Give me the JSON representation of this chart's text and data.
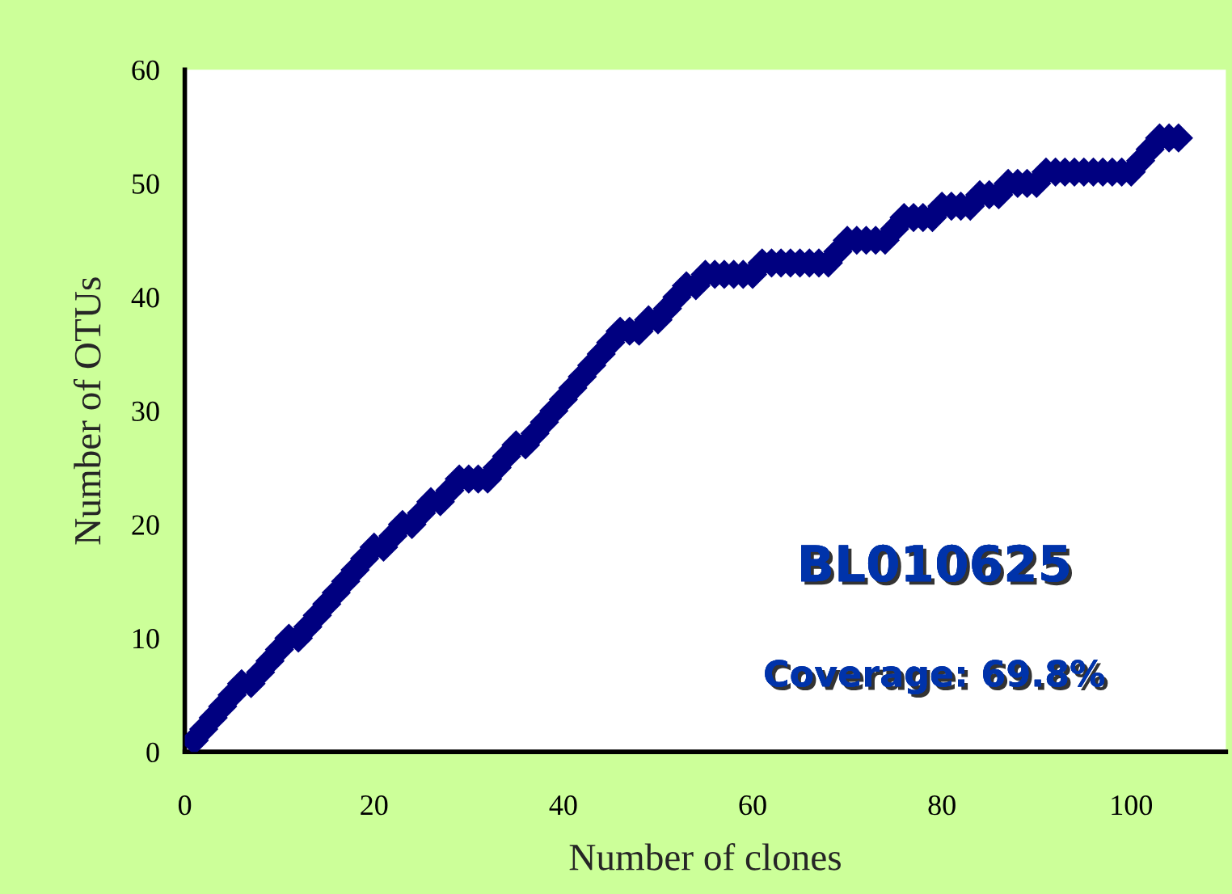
{
  "chart_data": {
    "type": "scatter",
    "xlabel": "Number of clones",
    "ylabel": "Number of OTUs",
    "annotations": [
      "BL010625",
      "Coverage: 69.8%"
    ],
    "marker": "diamond",
    "grid": false,
    "legend": false,
    "xlim": [
      0,
      110
    ],
    "xticks": [
      0,
      20,
      40,
      60,
      80,
      100
    ],
    "ylim": [
      0,
      60
    ],
    "yticks": [
      0,
      10,
      20,
      30,
      40,
      50,
      60
    ],
    "series": [
      {
        "color": "#000080",
        "x": [
          1,
          2,
          3,
          4,
          5,
          6,
          7,
          8,
          9,
          10,
          11,
          12,
          13,
          14,
          15,
          16,
          17,
          18,
          19,
          20,
          21,
          22,
          23,
          24,
          25,
          26,
          27,
          28,
          29,
          30,
          31,
          32,
          33,
          34,
          35,
          36,
          37,
          38,
          39,
          40,
          41,
          42,
          43,
          44,
          45,
          46,
          47,
          48,
          49,
          50,
          51,
          52,
          53,
          54,
          55,
          56,
          57,
          58,
          59,
          60,
          61,
          62,
          63,
          64,
          65,
          66,
          67,
          68,
          69,
          70,
          71,
          72,
          73,
          74,
          75,
          76,
          77,
          78,
          79,
          80,
          81,
          82,
          83,
          84,
          85,
          86,
          87,
          88,
          89,
          90,
          91,
          92,
          93,
          94,
          95,
          96,
          97,
          98,
          99,
          100,
          101,
          102,
          103,
          104,
          105
        ],
        "values": [
          1,
          2,
          3,
          4,
          5,
          6,
          6,
          7,
          8,
          9,
          10,
          10,
          11,
          12,
          13,
          14,
          15,
          16,
          17,
          18,
          18,
          19,
          20,
          20,
          21,
          22,
          22,
          23,
          24,
          24,
          24,
          24,
          25,
          26,
          27,
          27,
          28,
          29,
          30,
          31,
          32,
          33,
          34,
          35,
          36,
          37,
          37,
          37,
          38,
          38,
          39,
          40,
          41,
          41,
          42,
          42,
          42,
          42,
          42,
          42,
          43,
          43,
          43,
          43,
          43,
          43,
          43,
          43,
          44,
          45,
          45,
          45,
          45,
          45,
          46,
          47,
          47,
          47,
          47,
          48,
          48,
          48,
          48,
          49,
          49,
          49,
          50,
          50,
          50,
          50,
          51,
          51,
          51,
          51,
          51,
          51,
          51,
          51,
          51,
          51,
          52,
          53,
          54,
          54,
          54
        ]
      }
    ]
  }
}
